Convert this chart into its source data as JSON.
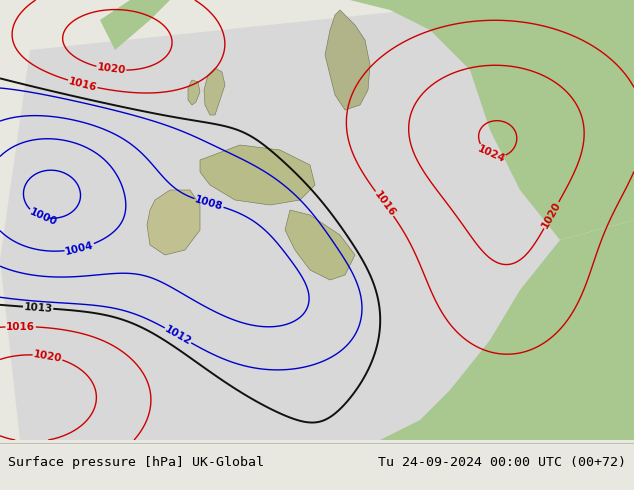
{
  "title_left": "Surface pressure [hPa] UK-Global",
  "title_right": "Tu 24-09-2024 00:00 UTC (00+72)",
  "footer_text_color": "#000000",
  "bg_outer_color": "#c8c8a0",
  "domain_bg_color": "#dcdcdc",
  "green_land_color": "#a8c890",
  "dark_land_color": "#b0b090",
  "footer_bg": "#e8e8e0",
  "blue_contour": "#0000cc",
  "red_contour": "#cc0000",
  "black_contour": "#111111",
  "contour_lw_major": 1.4,
  "contour_lw_minor": 1.0,
  "label_fontsize": 7.5
}
